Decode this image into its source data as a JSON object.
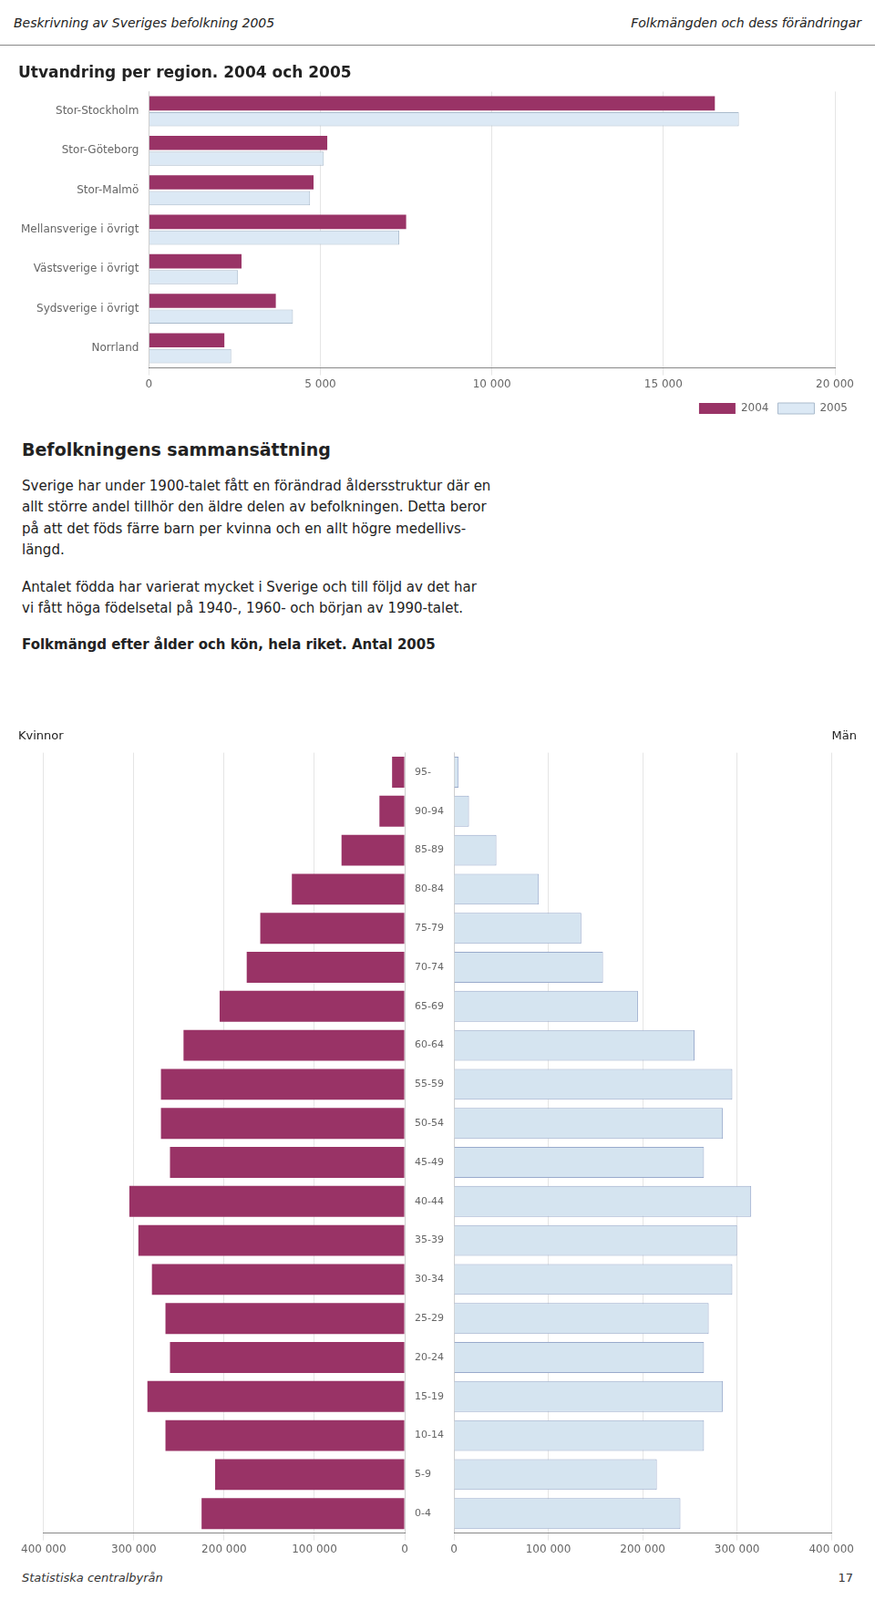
{
  "chart_data": [
    {
      "type": "bar",
      "orientation": "horizontal",
      "title": "Utvandring per region. 2004 och 2005",
      "categories": [
        "Stor-Stockholm",
        "Stor-Göteborg",
        "Stor-Malmö",
        "Mellansverige i övrigt",
        "Västsverige i övrigt",
        "Sydsverige i övrigt",
        "Norrland"
      ],
      "series": [
        {
          "name": "2004",
          "color": "#993366",
          "values": [
            16500,
            5200,
            4800,
            7500,
            2700,
            3700,
            2200
          ]
        },
        {
          "name": "2005",
          "color": "#dce9f5",
          "values": [
            17200,
            5100,
            4700,
            7300,
            2600,
            4200,
            2400
          ]
        }
      ],
      "xlim": [
        0,
        20000
      ],
      "xticks": [
        0,
        {
          "value": 5000,
          "label": "5 000"
        },
        {
          "value": 10000,
          "label": "10 000"
        },
        {
          "value": 15000,
          "label": "15 000"
        },
        {
          "value": 20000,
          "label": "20 000"
        }
      ],
      "grid": true,
      "legend": "lower right",
      "annotations": [
        "Beskrivning av Sveriges befolkning 2005",
        "Folkmängden och dess förändringar"
      ]
    },
    {
      "type": "bar",
      "orientation": "horizontal",
      "title": "Kvinnor",
      "categories": [
        "0-4",
        "5-9",
        "10-14",
        "15-19",
        "20-24",
        "25-29",
        "30-34",
        "35-39",
        "40-44",
        "45-49",
        "50-54",
        "55-59",
        "60-64",
        "65-69",
        "70-74",
        "75-79",
        "80-84",
        "85-89",
        "90-94",
        "95-"
      ],
      "values": [
        225000,
        210000,
        265000,
        285000,
        260000,
        265000,
        280000,
        295000,
        305000,
        260000,
        270000,
        270000,
        245000,
        205000,
        175000,
        160000,
        125000,
        70000,
        28000,
        14000
      ],
      "color": "#993366",
      "xlim": [
        400000,
        0
      ],
      "xticks": [
        {
          "value": 400000,
          "label": "400 000"
        },
        {
          "value": 300000,
          "label": "300 000"
        },
        {
          "value": 200000,
          "label": "200 000"
        },
        {
          "value": 100000,
          "label": "100 000"
        },
        0
      ],
      "grid": true,
      "annotations": [
        "Befolkningens sammansättning",
        "Sverige har under 1900-talet fått en förändrad åldersstruktur där en\nallt större andel tillhör den äldre delen av befolkningen. Detta beror\npå att det föds färre barn per kvinna och en allt högre medellivs-\nlängd.",
        "Antalet födda har varierat mycket i Sverige och till följd av det har\nvi fått höga födelsetal på 1940-, 1960- och början av 1990-talet.",
        "Folkmängd efter ålder och kön, hela riket. Antal 2005"
      ]
    },
    {
      "type": "bar",
      "orientation": "horizontal",
      "title": "Män",
      "categories": [
        "0-4",
        "5-9",
        "10-14",
        "15-19",
        "20-24",
        "25-29",
        "30-34",
        "35-39",
        "40-44",
        "45-49",
        "50-54",
        "55-59",
        "60-64",
        "65-69",
        "70-74",
        "75-79",
        "80-84",
        "85-89",
        "90-94",
        "95-"
      ],
      "values": [
        240000,
        215000,
        265000,
        285000,
        265000,
        270000,
        295000,
        300000,
        315000,
        265000,
        285000,
        295000,
        255000,
        195000,
        158000,
        135000,
        90000,
        45000,
        16000,
        5000
      ],
      "color": "#d5e4f0",
      "xlim": [
        0,
        400000
      ],
      "xticks": [
        0,
        {
          "value": 100000,
          "label": "100 000"
        },
        {
          "value": 200000,
          "label": "200 000"
        },
        {
          "value": 300000,
          "label": "300 000"
        },
        {
          "value": 400000,
          "label": "400 000"
        }
      ],
      "grid": true,
      "tick_labels": "x",
      "annotations": [
        "Statistiska centralbyrån",
        "17"
      ]
    }
  ]
}
